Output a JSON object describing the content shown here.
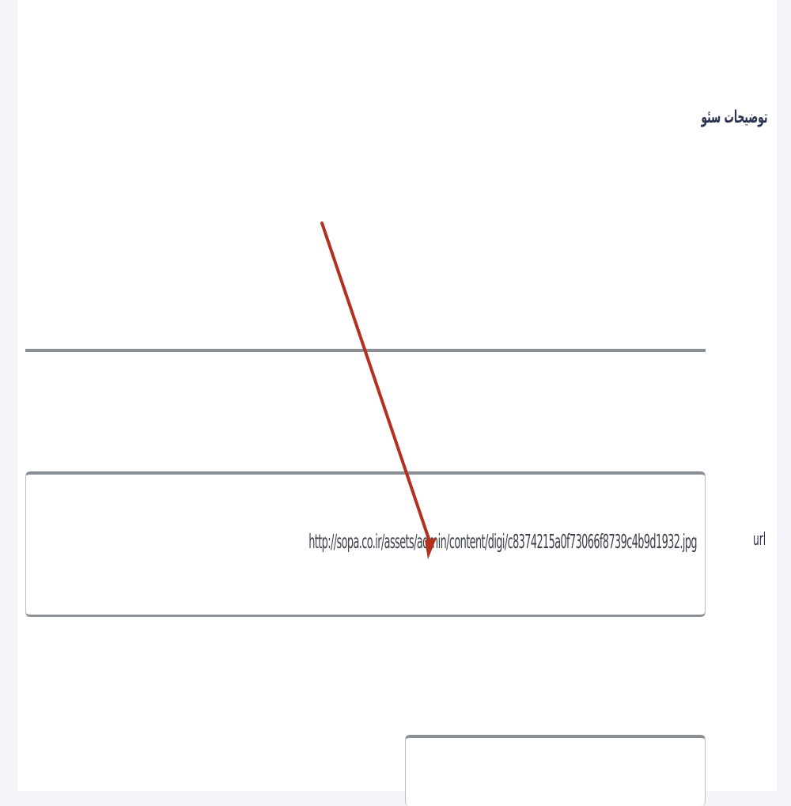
{
  "form": {
    "description_label": "توضیحات سئو",
    "url_label": "url",
    "url_value": "http://sopa.co.ir/assets/admin/content/digi/c8374215a0f73066f8739c4b9d1932.jpg",
    "next_label": ""
  },
  "colors": {
    "label_text": "#2b3350",
    "field_border": "#8a8f96",
    "annotation_arrow": "#b3301f"
  }
}
